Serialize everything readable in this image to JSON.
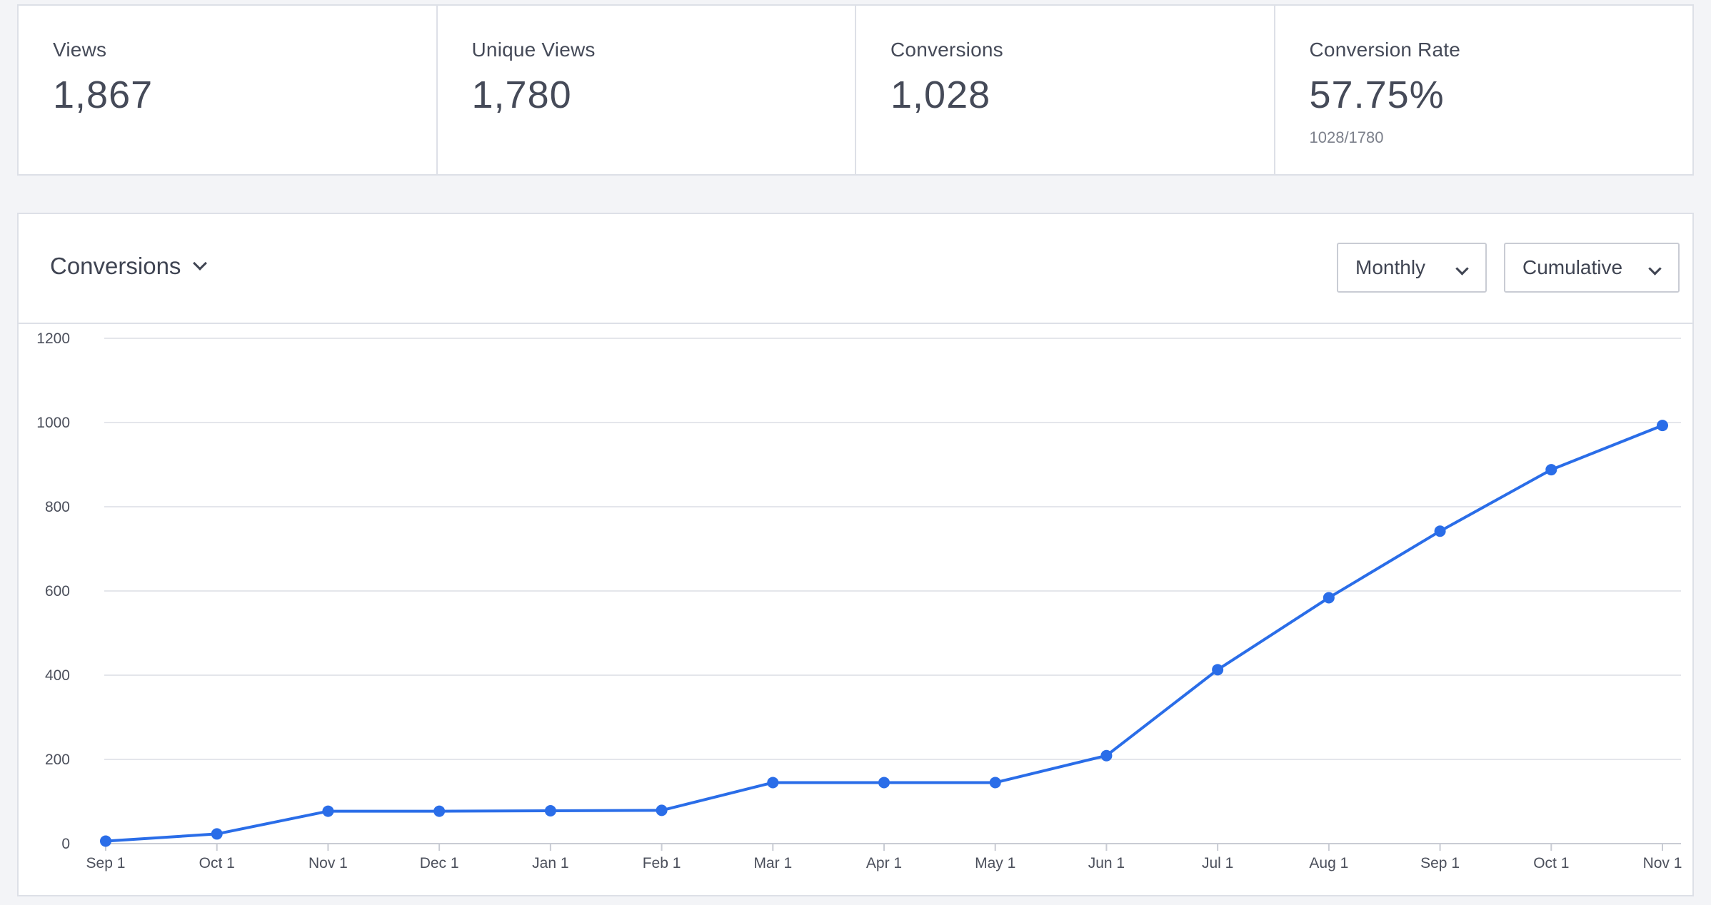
{
  "stats": [
    {
      "label": "Views",
      "value": "1,867",
      "sub": ""
    },
    {
      "label": "Unique Views",
      "value": "1,780",
      "sub": ""
    },
    {
      "label": "Conversions",
      "value": "1,028",
      "sub": ""
    },
    {
      "label": "Conversion Rate",
      "value": "57.75%",
      "sub": "1028/1780"
    }
  ],
  "chart_panel": {
    "metric": "Conversions",
    "interval": "Monthly",
    "mode": "Cumulative"
  },
  "icons": [
    "chevron-down-icon"
  ],
  "colors": {
    "line": "#2a6de8",
    "grid": "#e4e6eb",
    "background": "#f3f4f7"
  },
  "chart_data": {
    "type": "line",
    "categories": [
      "Sep 1",
      "Oct 1",
      "Nov 1",
      "Dec 1",
      "Jan 1",
      "Feb 1",
      "Mar 1",
      "Apr 1",
      "May 1",
      "Jun 1",
      "Jul 1",
      "Aug 1",
      "Sep 1",
      "Oct 1",
      "Nov 1"
    ],
    "series": [
      {
        "values": [
          6,
          23,
          77,
          77,
          78,
          79,
          145,
          145,
          145,
          209,
          413,
          584,
          742,
          888,
          993
        ]
      }
    ],
    "y_ticks": [
      "0",
      "200",
      "400",
      "600",
      "800",
      "1000",
      "1200"
    ],
    "ylim": [
      0,
      1200
    ],
    "grid": true,
    "legend": "none"
  }
}
